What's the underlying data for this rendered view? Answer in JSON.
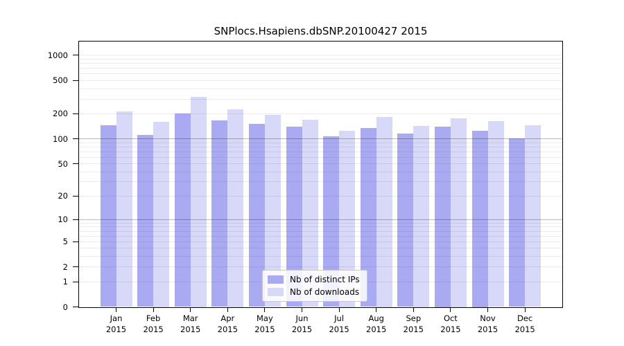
{
  "chart_data": {
    "type": "bar",
    "title": "SNPlocs.Hsapiens.dbSNP.20100427 2015",
    "categories": [
      "Jan",
      "Feb",
      "Mar",
      "Apr",
      "May",
      "Jun",
      "Jul",
      "Aug",
      "Sep",
      "Oct",
      "Nov",
      "Dec"
    ],
    "x_year_label": "2015",
    "series": [
      {
        "name": "Nb of distinct IPs",
        "color": "#aaaaf2",
        "values": [
          146,
          111,
          202,
          166,
          152,
          139,
          108,
          135,
          115,
          140,
          126,
          101
        ]
      },
      {
        "name": "Nb of downloads",
        "color": "#d8d8f8",
        "values": [
          213,
          160,
          318,
          228,
          193,
          170,
          126,
          183,
          144,
          176,
          162,
          146
        ]
      }
    ],
    "y_axis": {
      "scale": "log1p",
      "tick_values": [
        0,
        1,
        2,
        5,
        10,
        20,
        50,
        100,
        200,
        500,
        1000
      ]
    },
    "xlabel": "",
    "ylabel": "",
    "grid": true,
    "gridlines": {
      "minor": [
        1,
        2,
        3,
        4,
        5,
        6,
        7,
        8,
        9,
        20,
        30,
        40,
        50,
        60,
        70,
        80,
        90,
        200,
        300,
        400,
        500,
        600,
        700,
        800,
        900,
        1000
      ],
      "major": [
        10,
        100
      ]
    },
    "legend": {
      "position": "inside-bottom-center",
      "entries": [
        "Nb of distinct IPs",
        "Nb of downloads"
      ]
    },
    "colors": {
      "bar_distinct_ips": "#aaaaf2",
      "bar_downloads": "#d8d8f8",
      "grid_minor": "#ebebeb",
      "grid_major": "#b8b8b8",
      "frame": "#000000",
      "background": "#ffffff"
    }
  }
}
